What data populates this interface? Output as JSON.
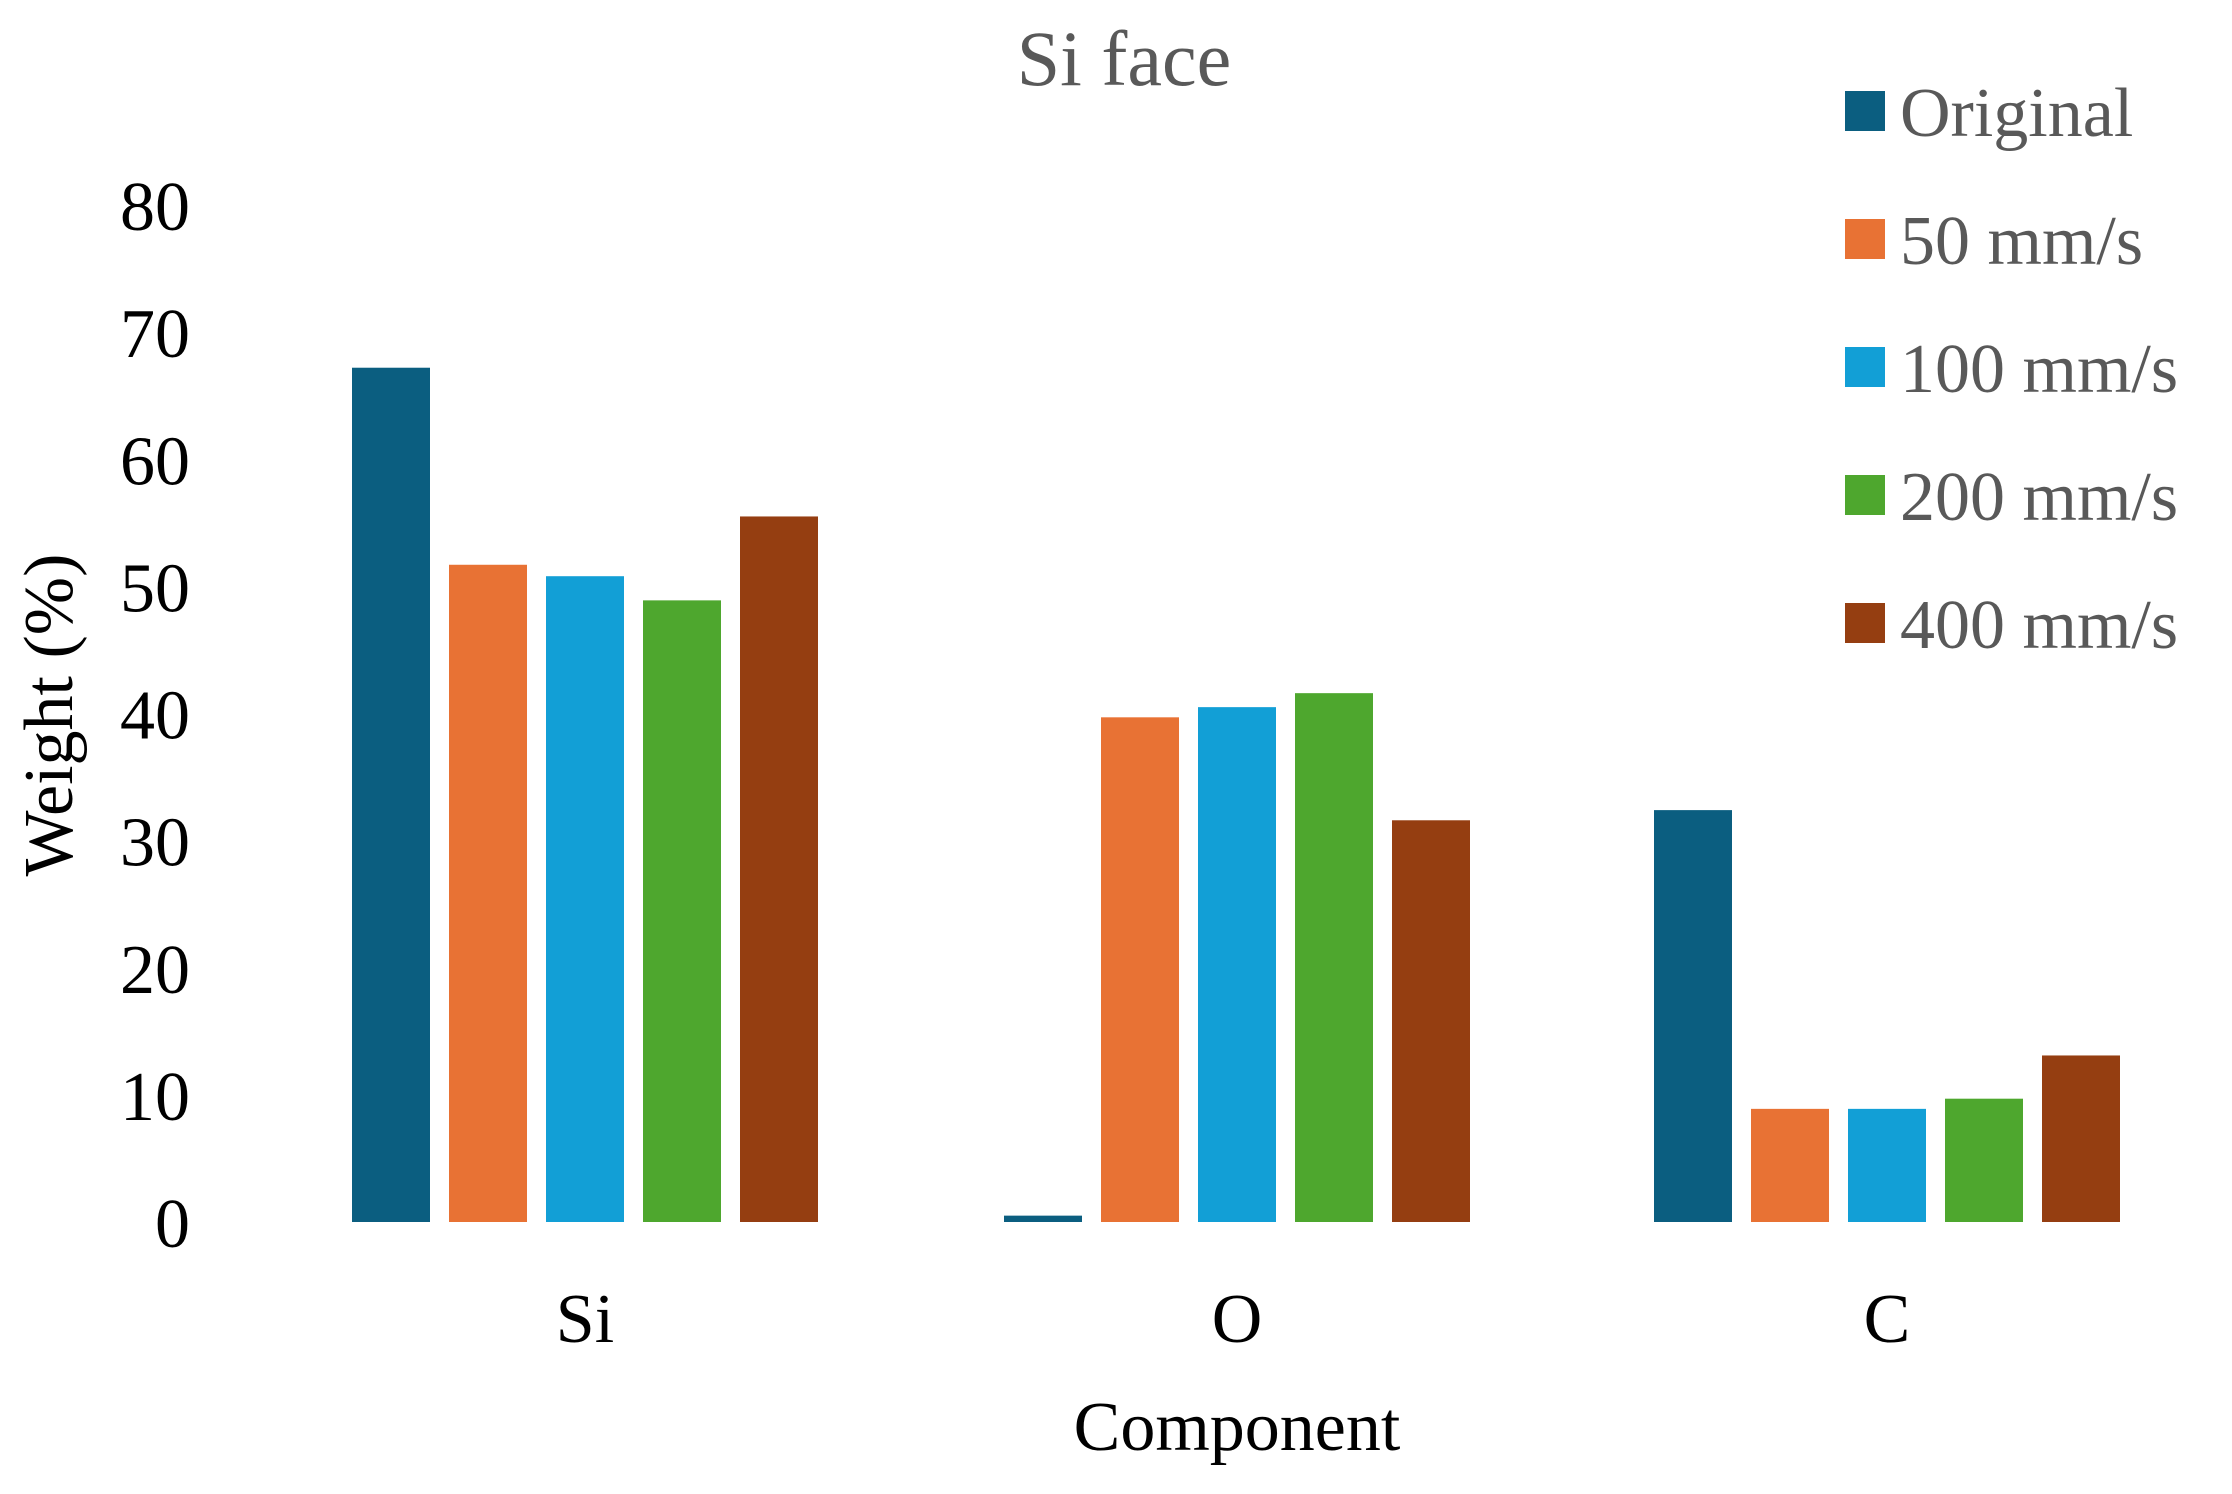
{
  "chart_data": {
    "type": "bar",
    "title": "Si face",
    "xlabel": "Component",
    "ylabel": "Weight (%)",
    "categories": [
      "Si",
      "O",
      "C"
    ],
    "ylim": [
      0,
      80
    ],
    "yticks": [
      "0",
      "10",
      "20",
      "30",
      "40",
      "50",
      "60",
      "70",
      "80"
    ],
    "grid": false,
    "legend_position": "top-right",
    "series": [
      {
        "name": "Original",
        "color": "#0b5e80",
        "values": [
          67.2,
          0.5,
          32.4
        ]
      },
      {
        "name": "50 mm/s",
        "color": "#e87234",
        "values": [
          51.7,
          39.7,
          8.9
        ]
      },
      {
        "name": "100 mm/s",
        "color": "#129fd6",
        "values": [
          50.8,
          40.5,
          8.9
        ]
      },
      {
        "name": "200 mm/s",
        "color": "#4ea72e",
        "values": [
          48.9,
          41.6,
          9.7
        ]
      },
      {
        "name": "400 mm/s",
        "color": "#953e11",
        "values": [
          55.5,
          31.6,
          13.1
        ]
      }
    ]
  }
}
